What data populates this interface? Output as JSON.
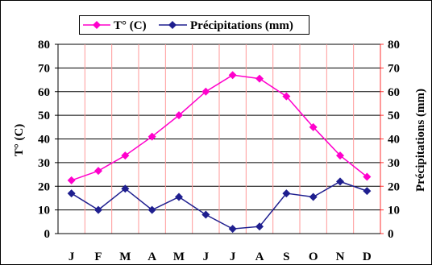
{
  "chart_data": {
    "type": "line",
    "categories": [
      "J",
      "F",
      "M",
      "A",
      "M",
      "J",
      "J",
      "A",
      "S",
      "O",
      "N",
      "D"
    ],
    "series": [
      {
        "name": "T° (C)",
        "axis": "left",
        "color": "#ff00cc",
        "marker": "diamond",
        "values": [
          22.5,
          26.5,
          33,
          41,
          50,
          60,
          67,
          65.5,
          58,
          45,
          33,
          24
        ]
      },
      {
        "name": "Précipitations (mm)",
        "axis": "right",
        "color": "#1f1f8f",
        "marker": "diamond",
        "values": [
          17,
          10,
          19,
          10,
          15.5,
          8,
          2,
          3,
          17,
          15.5,
          22,
          18
        ]
      }
    ],
    "ylabel_left": "T° (C)",
    "ylabel_right": "Précipitations (mm)",
    "xlabel": "",
    "ylim_left": [
      0,
      80
    ],
    "ylim_right": [
      0,
      80
    ],
    "yticks": [
      0,
      10,
      20,
      30,
      40,
      50,
      60,
      70,
      80
    ],
    "grid": true,
    "legend_position": "top-center"
  }
}
